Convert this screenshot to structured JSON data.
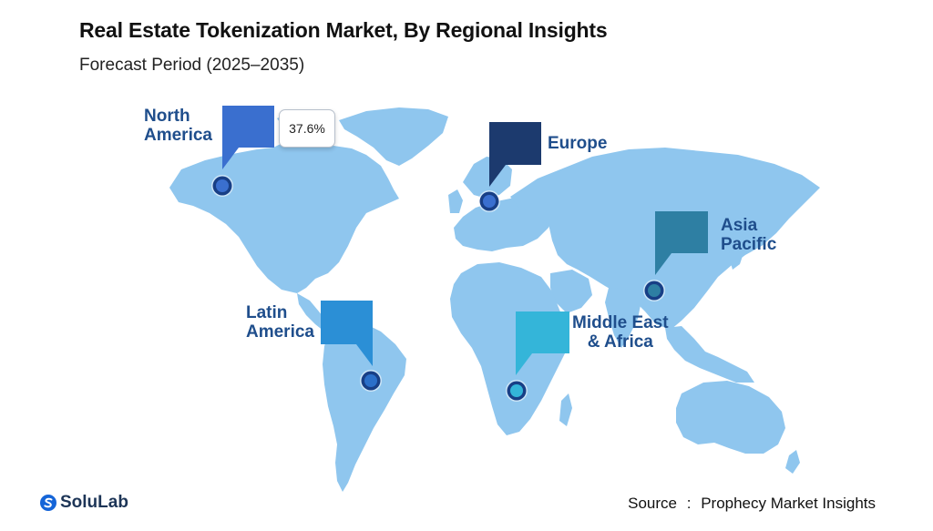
{
  "header": {
    "title": "Real Estate Tokenization Market, By Regional Insights",
    "subtitle": "Forecast Period (2025–2035)"
  },
  "regions": [
    {
      "key": "north_america",
      "lines": [
        "North",
        "America"
      ],
      "color": "#3a6fcf"
    },
    {
      "key": "europe",
      "lines": [
        "Europe"
      ],
      "color": "#1c3a6e"
    },
    {
      "key": "asia_pacific",
      "lines": [
        "Asia",
        "Pacific"
      ],
      "color": "#2e7fa3"
    },
    {
      "key": "latin_america",
      "lines": [
        "Latin",
        "America"
      ],
      "color": "#2b8fd6"
    },
    {
      "key": "middle_east_africa",
      "lines": [
        "Middle East",
        "& Africa"
      ],
      "color": "#34b5d9"
    }
  ],
  "tooltip": {
    "value": "37.6%"
  },
  "colors": {
    "land": "#8fc6ee",
    "label_text": "#1f4e8c",
    "marker_ring": "#183f86"
  },
  "footer": {
    "brand": "SoluLab",
    "source_label": "Source",
    "source_separator": ":",
    "source_value": "Prophecy Market Insights"
  },
  "icons": {
    "logo": "solulab-logo-icon"
  }
}
